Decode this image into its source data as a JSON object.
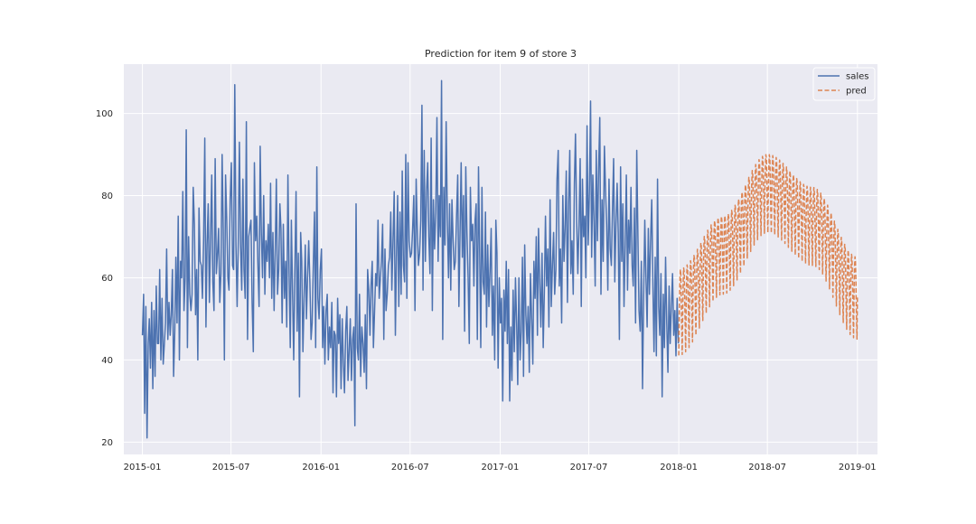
{
  "chart_data": {
    "type": "line",
    "title": "Prediction for item 9 of store 3",
    "xlabel": "",
    "ylabel": "",
    "x_axis": {
      "type": "date",
      "range": [
        "2014-11-24",
        "2019-02-11"
      ],
      "ticks": [
        "2015-01",
        "2015-07",
        "2016-01",
        "2016-07",
        "2017-01",
        "2017-07",
        "2018-01",
        "2018-07",
        "2019-01"
      ]
    },
    "y_axis": {
      "range": [
        17,
        112
      ],
      "ticks": [
        20,
        40,
        60,
        80,
        100
      ]
    },
    "grid": true,
    "legend": {
      "placement": "top-right",
      "entries": [
        {
          "name": "sales",
          "style": "solid"
        },
        {
          "name": "pred",
          "style": "dashed"
        }
      ]
    },
    "colors": {
      "background": "#eaeaf2",
      "grid": "#ffffff",
      "sales": "#4c72b0",
      "pred": "#dd8452"
    },
    "series": [
      {
        "name": "sales",
        "style": "solid",
        "color": "#4c72b0",
        "x_start": "2015-01-01",
        "frequency": "daily (approx. 2.5-day sampling)",
        "values": [
          46,
          56,
          27,
          53,
          21,
          44,
          50,
          38,
          54,
          33,
          52,
          36,
          58,
          44,
          44,
          62,
          40,
          55,
          39,
          44,
          49,
          67,
          45,
          54,
          46,
          51,
          62,
          36,
          47,
          65,
          49,
          75,
          40,
          64,
          60,
          81,
          52,
          60,
          96,
          43,
          70,
          56,
          52,
          56,
          82,
          73,
          51,
          62,
          40,
          77,
          64,
          63,
          55,
          69,
          94,
          48,
          68,
          78,
          54,
          70,
          85,
          59,
          52,
          89,
          61,
          66,
          72,
          54,
          61,
          90,
          72,
          40,
          85,
          74,
          60,
          57,
          79,
          88,
          63,
          62,
          107,
          68,
          53,
          69,
          93,
          68,
          57,
          84,
          62,
          55,
          98,
          45,
          70,
          72,
          74,
          54,
          42,
          88,
          69,
          75,
          63,
          53,
          92,
          71,
          60,
          80,
          56,
          69,
          64,
          73,
          60,
          83,
          55,
          71,
          52,
          67,
          84,
          56,
          62,
          78,
          72,
          49,
          73,
          55,
          64,
          48,
          85,
          61,
          43,
          74,
          57,
          40,
          62,
          81,
          47,
          66,
          31,
          71,
          64,
          42,
          55,
          68,
          50,
          60,
          69,
          59,
          45,
          49,
          63,
          76,
          43,
          87,
          55,
          50,
          62,
          67,
          43,
          53,
          39,
          52,
          56,
          40,
          48,
          43,
          54,
          32,
          47,
          46,
          31,
          55,
          44,
          51,
          33,
          50,
          39,
          32,
          47,
          53,
          35,
          42,
          50,
          35,
          45,
          48,
          24,
          78,
          43,
          40,
          56,
          36,
          48,
          44,
          37,
          51,
          33,
          62,
          57,
          46,
          58,
          64,
          43,
          52,
          61,
          58,
          74,
          55,
          60,
          64,
          73,
          45,
          67,
          52,
          56,
          63,
          65,
          76,
          57,
          69,
          81,
          46,
          65,
          80,
          53,
          76,
          56,
          86,
          63,
          59,
          90,
          55,
          88,
          69,
          65,
          66,
          72,
          80,
          52,
          84,
          71,
          63,
          66,
          74,
          102,
          57,
          91,
          64,
          81,
          88,
          70,
          61,
          94,
          52,
          79,
          67,
          76,
          99,
          64,
          80,
          70,
          108,
          45,
          82,
          68,
          98,
          74,
          60,
          78,
          57,
          79,
          69,
          62,
          64,
          75,
          85,
          53,
          70,
          88,
          65,
          80,
          47,
          87,
          71,
          60,
          44,
          82,
          69,
          73,
          58,
          74,
          78,
          45,
          87,
          66,
          43,
          82,
          59,
          56,
          76,
          48,
          68,
          53,
          62,
          72,
          46,
          58,
          40,
          74,
          66,
          38,
          60,
          49,
          55,
          30,
          57,
          47,
          64,
          44,
          62,
          30,
          48,
          35,
          57,
          42,
          60,
          49,
          34,
          60,
          40,
          47,
          65,
          36,
          68,
          51,
          44,
          53,
          37,
          61,
          50,
          39,
          64,
          55,
          70,
          46,
          72,
          59,
          48,
          66,
          43,
          56,
          75,
          58,
          67,
          48,
          79,
          53,
          63,
          71,
          56,
          62,
          84,
          91,
          58,
          67,
          49,
          80,
          64,
          72,
          86,
          54,
          78,
          91,
          61,
          69,
          56,
          83,
          95,
          74,
          61,
          73,
          89,
          53,
          84,
          70,
          75,
          60,
          97,
          68,
          81,
          103,
          65,
          85,
          74,
          58,
          91,
          69,
          86,
          99,
          56,
          79,
          64,
          92,
          81,
          73,
          57,
          84,
          67,
          63,
          76,
          89,
          59,
          73,
          83,
          71,
          45,
          87,
          64,
          78,
          53,
          68,
          85,
          57,
          74,
          66,
          82,
          63,
          58,
          77,
          49,
          91,
          70,
          52,
          47,
          64,
          33,
          55,
          74,
          60,
          48,
          72,
          56,
          69,
          79,
          58,
          42,
          65,
          41,
          84,
          53,
          46,
          61,
          31,
          56,
          43,
          65,
          49,
          37,
          58,
          44,
          53,
          61,
          46,
          52,
          41,
          55,
          44
        ]
      },
      {
        "name": "pred",
        "style": "dashed",
        "color": "#dd8452",
        "x_start": "2018-01-01",
        "frequency": "daily",
        "weekly_pattern": "values oscillate each week between a low and a high envelope",
        "envelope_low": {
          "dates": [
            "2018-01-01",
            "2018-04-01",
            "2018-07-01",
            "2018-10-01",
            "2019-01-01"
          ],
          "values": [
            40,
            55,
            70,
            62,
            44
          ]
        },
        "envelope_high": {
          "dates": [
            "2018-01-01",
            "2018-04-01",
            "2018-07-01",
            "2018-10-01",
            "2019-01-01"
          ],
          "values": [
            62,
            75,
            90,
            82,
            65
          ]
        }
      }
    ]
  }
}
